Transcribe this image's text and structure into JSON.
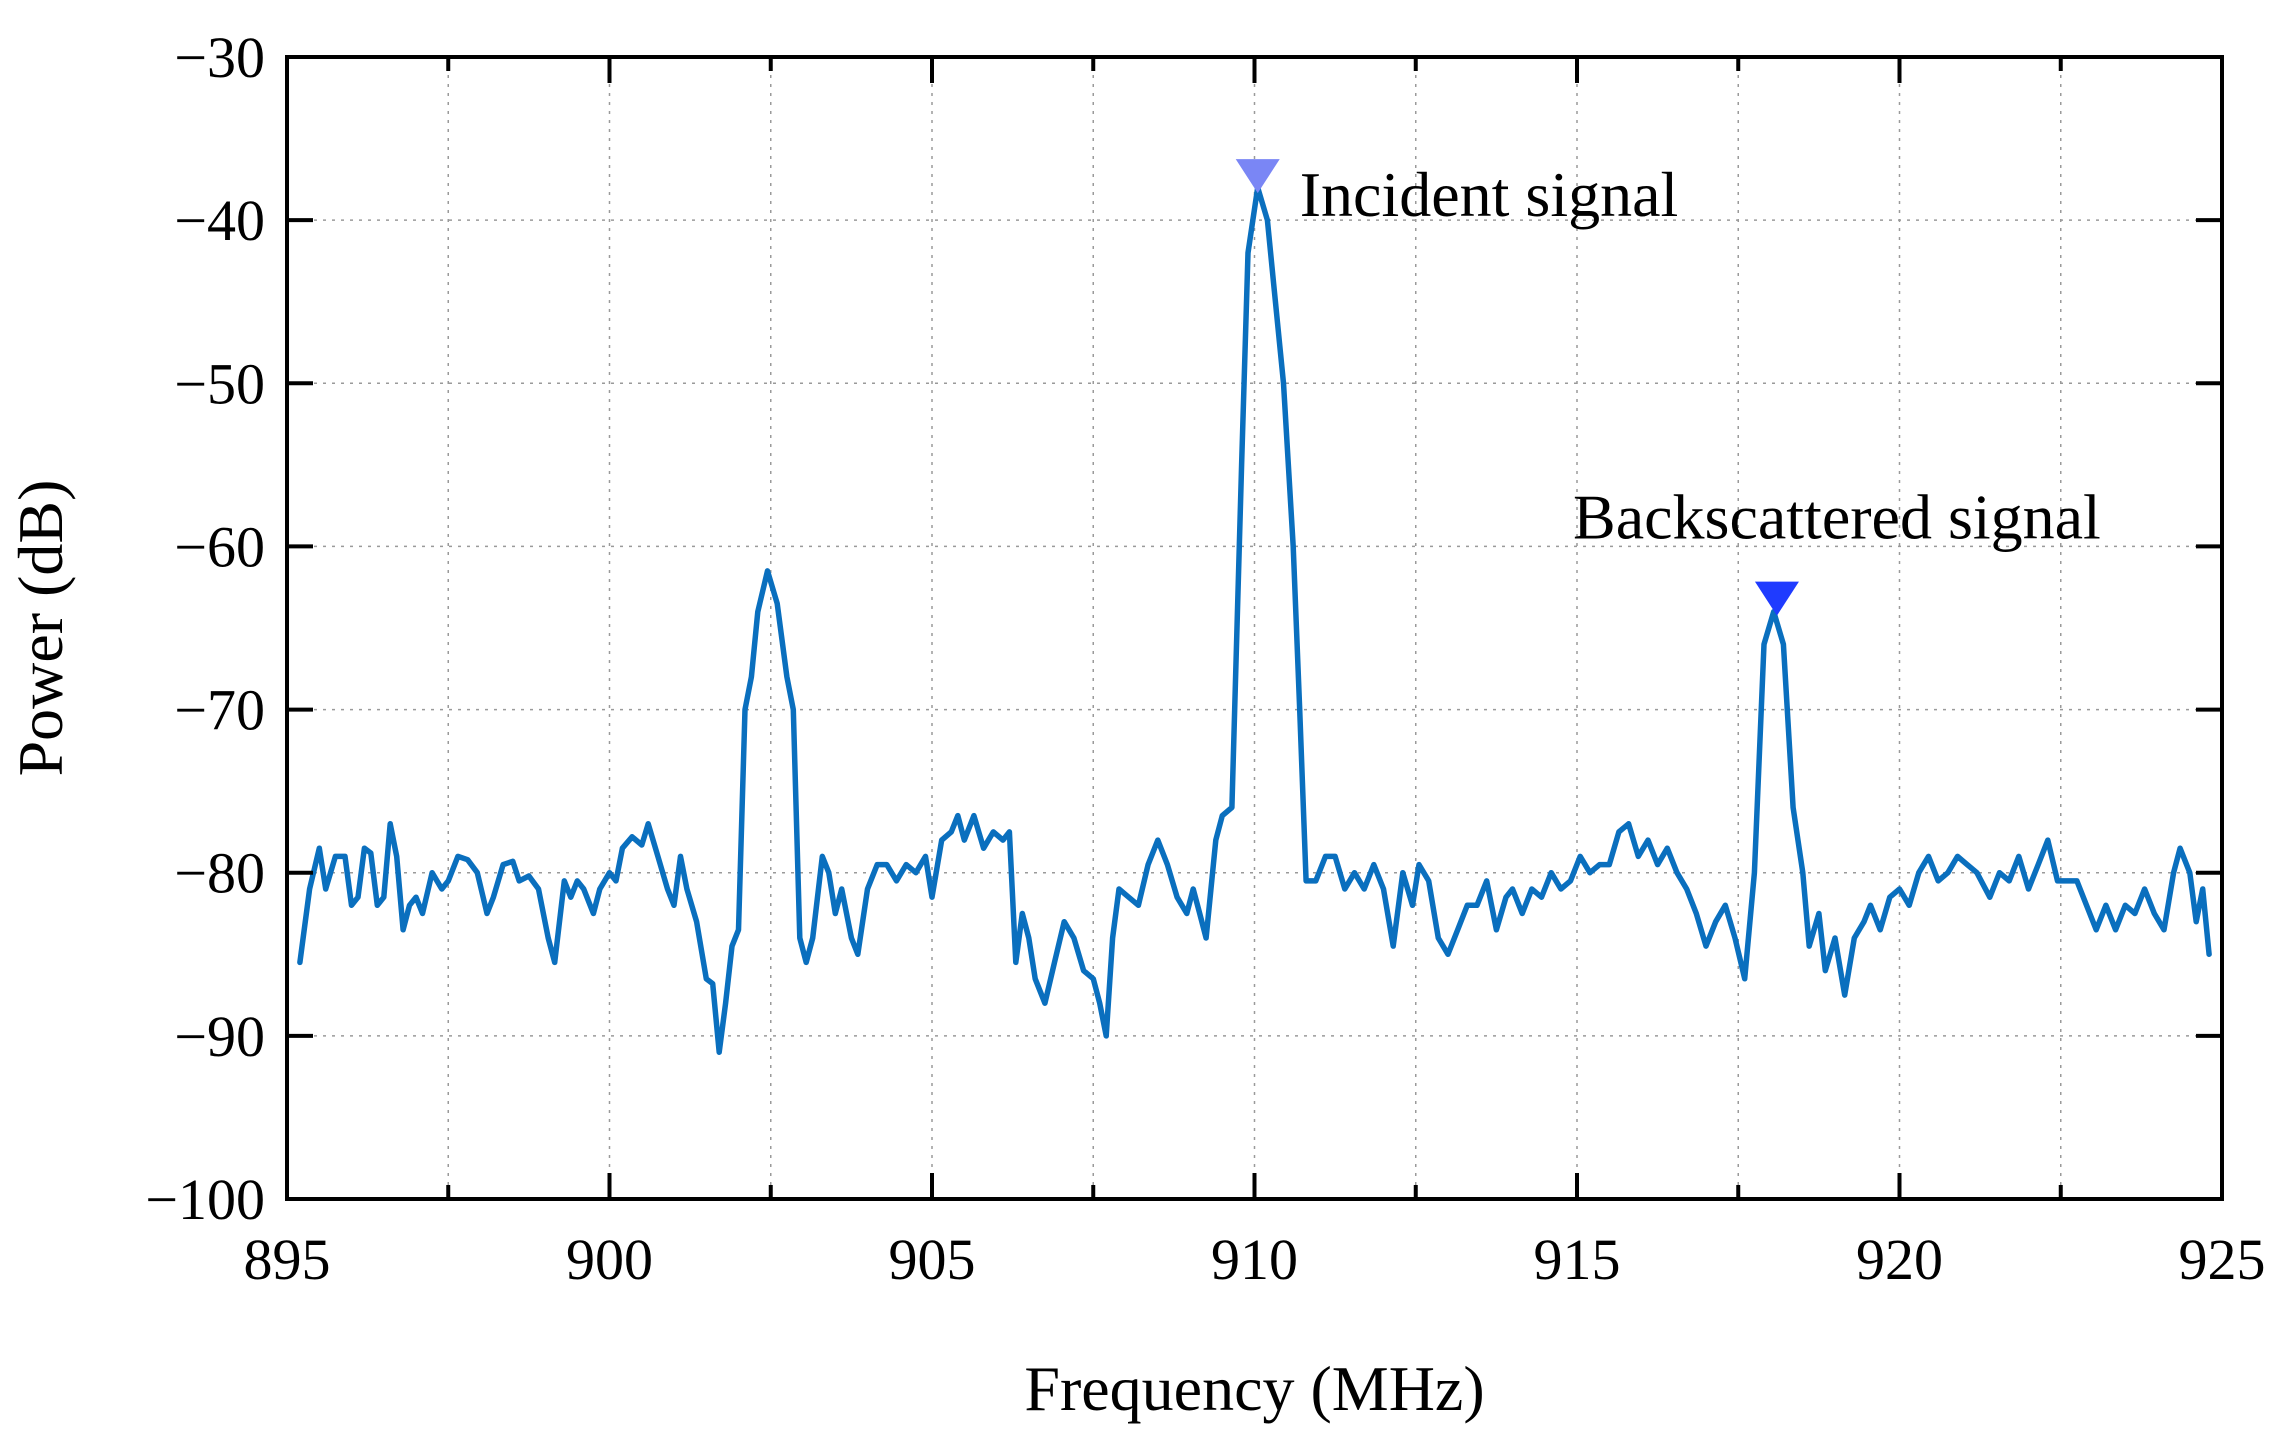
{
  "chart_data": {
    "type": "line",
    "title": "",
    "xlabel": "Frequency (MHz)",
    "ylabel": "Power (dB)",
    "xlim": [
      895,
      925
    ],
    "ylim": [
      -100,
      -30
    ],
    "xticks": [
      895,
      900,
      905,
      910,
      915,
      920,
      925
    ],
    "yticks": [
      -30,
      -40,
      -50,
      -60,
      -70,
      -80,
      -90,
      -100
    ],
    "xtick_labels": [
      "895",
      "900",
      "905",
      "910",
      "915",
      "920",
      "925"
    ],
    "ytick_labels": [
      "−30",
      "−40",
      "−50",
      "−60",
      "−70",
      "−80",
      "−90",
      "−100"
    ],
    "grid": true,
    "legend": "none",
    "series": [
      {
        "color": "#0a6fbe",
        "points": [
          [
            895.2,
            -85.5
          ],
          [
            895.35,
            -81
          ],
          [
            895.5,
            -78.5
          ],
          [
            895.6,
            -81
          ],
          [
            895.75,
            -79
          ],
          [
            895.9,
            -79
          ],
          [
            896.0,
            -82
          ],
          [
            896.1,
            -81.5
          ],
          [
            896.2,
            -78.5
          ],
          [
            896.3,
            -78.8
          ],
          [
            896.4,
            -82
          ],
          [
            896.5,
            -81.5
          ],
          [
            896.6,
            -77
          ],
          [
            896.7,
            -79
          ],
          [
            896.8,
            -83.5
          ],
          [
            896.9,
            -82
          ],
          [
            897.0,
            -81.5
          ],
          [
            897.1,
            -82.5
          ],
          [
            897.25,
            -80
          ],
          [
            897.4,
            -81
          ],
          [
            897.5,
            -80.5
          ],
          [
            897.65,
            -79
          ],
          [
            897.8,
            -79.2
          ],
          [
            897.95,
            -80
          ],
          [
            898.1,
            -82.5
          ],
          [
            898.2,
            -81.5
          ],
          [
            898.35,
            -79.5
          ],
          [
            898.5,
            -79.3
          ],
          [
            898.6,
            -80.5
          ],
          [
            898.75,
            -80.2
          ],
          [
            898.9,
            -81
          ],
          [
            899.05,
            -84
          ],
          [
            899.15,
            -85.5
          ],
          [
            899.3,
            -80.5
          ],
          [
            899.4,
            -81.5
          ],
          [
            899.5,
            -80.5
          ],
          [
            899.6,
            -81
          ],
          [
            899.75,
            -82.5
          ],
          [
            899.85,
            -81
          ],
          [
            900.0,
            -80
          ],
          [
            900.1,
            -80.5
          ],
          [
            900.2,
            -78.5
          ],
          [
            900.35,
            -77.8
          ],
          [
            900.5,
            -78.3
          ],
          [
            900.6,
            -77
          ],
          [
            900.75,
            -79
          ],
          [
            900.9,
            -81
          ],
          [
            901.0,
            -82
          ],
          [
            901.1,
            -79
          ],
          [
            901.2,
            -81
          ],
          [
            901.35,
            -83
          ],
          [
            901.5,
            -86.5
          ],
          [
            901.6,
            -86.8
          ],
          [
            901.7,
            -91
          ],
          [
            901.8,
            -88
          ],
          [
            901.9,
            -84.5
          ],
          [
            902.0,
            -83.5
          ],
          [
            902.1,
            -70
          ],
          [
            902.2,
            -68
          ],
          [
            902.3,
            -64
          ],
          [
            902.45,
            -61.5
          ],
          [
            902.6,
            -63.5
          ],
          [
            902.75,
            -68
          ],
          [
            902.85,
            -70
          ],
          [
            902.95,
            -84
          ],
          [
            903.05,
            -85.5
          ],
          [
            903.15,
            -84
          ],
          [
            903.3,
            -79
          ],
          [
            903.4,
            -80
          ],
          [
            903.5,
            -82.5
          ],
          [
            903.6,
            -81
          ],
          [
            903.75,
            -84
          ],
          [
            903.85,
            -85
          ],
          [
            904.0,
            -81
          ],
          [
            904.15,
            -79.5
          ],
          [
            904.3,
            -79.5
          ],
          [
            904.45,
            -80.5
          ],
          [
            904.6,
            -79.5
          ],
          [
            904.75,
            -80
          ],
          [
            904.9,
            -79
          ],
          [
            905.0,
            -81.5
          ],
          [
            905.15,
            -78
          ],
          [
            905.3,
            -77.5
          ],
          [
            905.4,
            -76.5
          ],
          [
            905.5,
            -78
          ],
          [
            905.65,
            -76.5
          ],
          [
            905.8,
            -78.5
          ],
          [
            905.95,
            -77.5
          ],
          [
            906.1,
            -78
          ],
          [
            906.2,
            -77.5
          ],
          [
            906.3,
            -85.5
          ],
          [
            906.4,
            -82.5
          ],
          [
            906.5,
            -84
          ],
          [
            906.6,
            -86.5
          ],
          [
            906.75,
            -88
          ],
          [
            906.9,
            -85.5
          ],
          [
            907.05,
            -83
          ],
          [
            907.2,
            -84
          ],
          [
            907.35,
            -86
          ],
          [
            907.5,
            -86.5
          ],
          [
            907.6,
            -88
          ],
          [
            907.7,
            -90
          ],
          [
            907.8,
            -84
          ],
          [
            907.9,
            -81
          ],
          [
            908.05,
            -81.5
          ],
          [
            908.2,
            -82
          ],
          [
            908.35,
            -79.5
          ],
          [
            908.5,
            -78
          ],
          [
            908.65,
            -79.5
          ],
          [
            908.8,
            -81.5
          ],
          [
            908.95,
            -82.5
          ],
          [
            909.05,
            -81
          ],
          [
            909.15,
            -82.5
          ],
          [
            909.25,
            -84
          ],
          [
            909.4,
            -78
          ],
          [
            909.5,
            -76.5
          ],
          [
            909.65,
            -76
          ],
          [
            909.8,
            -55
          ],
          [
            909.9,
            -42
          ],
          [
            910.05,
            -38
          ],
          [
            910.2,
            -40
          ],
          [
            910.3,
            -44
          ],
          [
            910.45,
            -50
          ],
          [
            910.6,
            -60
          ],
          [
            910.7,
            -70
          ],
          [
            910.8,
            -80.5
          ],
          [
            910.95,
            -80.5
          ],
          [
            911.1,
            -79
          ],
          [
            911.25,
            -79
          ],
          [
            911.4,
            -81
          ],
          [
            911.55,
            -80
          ],
          [
            911.7,
            -81
          ],
          [
            911.85,
            -79.5
          ],
          [
            912.0,
            -81
          ],
          [
            912.15,
            -84.5
          ],
          [
            912.3,
            -80
          ],
          [
            912.45,
            -82
          ],
          [
            912.55,
            -79.5
          ],
          [
            912.7,
            -80.5
          ],
          [
            912.85,
            -84
          ],
          [
            913.0,
            -85
          ],
          [
            913.15,
            -83.5
          ],
          [
            913.3,
            -82
          ],
          [
            913.45,
            -82
          ],
          [
            913.6,
            -80.5
          ],
          [
            913.75,
            -83.5
          ],
          [
            913.9,
            -81.5
          ],
          [
            914.0,
            -81
          ],
          [
            914.15,
            -82.5
          ],
          [
            914.3,
            -81
          ],
          [
            914.45,
            -81.5
          ],
          [
            914.6,
            -80
          ],
          [
            914.75,
            -81
          ],
          [
            914.9,
            -80.5
          ],
          [
            915.05,
            -79
          ],
          [
            915.2,
            -80
          ],
          [
            915.35,
            -79.5
          ],
          [
            915.5,
            -79.5
          ],
          [
            915.65,
            -77.5
          ],
          [
            915.8,
            -77
          ],
          [
            915.95,
            -79
          ],
          [
            916.1,
            -78
          ],
          [
            916.25,
            -79.5
          ],
          [
            916.4,
            -78.5
          ],
          [
            916.55,
            -80
          ],
          [
            916.7,
            -81
          ],
          [
            916.85,
            -82.5
          ],
          [
            917.0,
            -84.5
          ],
          [
            917.15,
            -83
          ],
          [
            917.3,
            -82
          ],
          [
            917.45,
            -84
          ],
          [
            917.6,
            -86.5
          ],
          [
            917.75,
            -80
          ],
          [
            917.9,
            -66
          ],
          [
            918.05,
            -64
          ],
          [
            918.2,
            -66
          ],
          [
            918.35,
            -76
          ],
          [
            918.5,
            -80
          ],
          [
            918.6,
            -84.5
          ],
          [
            918.75,
            -82.5
          ],
          [
            918.85,
            -86
          ],
          [
            919.0,
            -84
          ],
          [
            919.15,
            -87.5
          ],
          [
            919.3,
            -84
          ],
          [
            919.45,
            -83
          ],
          [
            919.55,
            -82
          ],
          [
            919.7,
            -83.5
          ],
          [
            919.85,
            -81.5
          ],
          [
            920.0,
            -81
          ],
          [
            920.15,
            -82
          ],
          [
            920.3,
            -80
          ],
          [
            920.45,
            -79
          ],
          [
            920.6,
            -80.5
          ],
          [
            920.75,
            -80
          ],
          [
            920.9,
            -79
          ],
          [
            921.05,
            -79.5
          ],
          [
            921.2,
            -80
          ],
          [
            921.4,
            -81.5
          ],
          [
            921.55,
            -80
          ],
          [
            921.7,
            -80.5
          ],
          [
            921.85,
            -79
          ],
          [
            922.0,
            -81
          ],
          [
            922.15,
            -79.5
          ],
          [
            922.3,
            -78
          ],
          [
            922.45,
            -80.5
          ],
          [
            922.6,
            -80.5
          ],
          [
            922.75,
            -80.5
          ],
          [
            922.9,
            -82
          ],
          [
            923.05,
            -83.5
          ],
          [
            923.2,
            -82
          ],
          [
            923.35,
            -83.5
          ],
          [
            923.5,
            -82
          ],
          [
            923.65,
            -82.5
          ],
          [
            923.8,
            -81
          ],
          [
            923.95,
            -82.5
          ],
          [
            924.1,
            -83.5
          ],
          [
            924.25,
            -80
          ],
          [
            924.35,
            -78.5
          ],
          [
            924.5,
            -80
          ],
          [
            924.6,
            -83
          ],
          [
            924.7,
            -81
          ],
          [
            924.8,
            -85
          ]
        ]
      }
    ],
    "markers": [
      {
        "x": 910.05,
        "y": -37.3,
        "shape": "triangle-down",
        "color": "#7a86f5",
        "label": "Incident signal"
      },
      {
        "x": 918.1,
        "y": -63.2,
        "shape": "triangle-down",
        "color": "#1f3bff",
        "label": "Backscattered signal"
      }
    ]
  }
}
